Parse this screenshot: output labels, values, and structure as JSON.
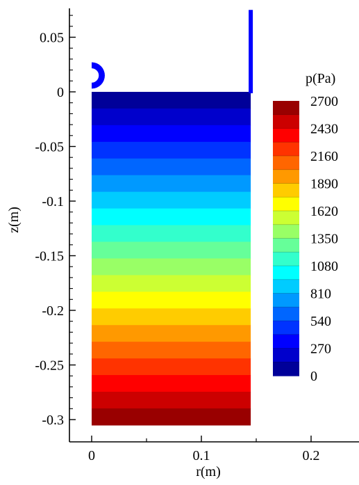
{
  "chart_data": {
    "type": "heatmap",
    "title": "",
    "xlabel": "r(m)",
    "ylabel": "z(m)",
    "xlim": [
      -0.025,
      0.25
    ],
    "ylim": [
      -0.31,
      0.075
    ],
    "x_ticks": [
      "0",
      "0.1",
      "0.2"
    ],
    "x_tick_values": [
      0,
      0.1,
      0.2
    ],
    "y_ticks": [
      "0.05",
      "0",
      "-0.05",
      "-0.1",
      "-0.15",
      "-0.2",
      "-0.25",
      "-0.3"
    ],
    "y_tick_values": [
      0.05,
      0,
      -0.05,
      -0.1,
      -0.15,
      -0.2,
      -0.25,
      -0.3
    ],
    "field": {
      "name": "p",
      "unit": "Pa",
      "min": 0,
      "max": 2700,
      "description_of_distribution": "hydrostatic: p increases linearly with depth, 0 at free surface z=0 to about 2700 at z=-0.305"
    },
    "domain": {
      "r_min": 0,
      "r_max": 0.145,
      "z_top": 0,
      "z_bottom": -0.305
    },
    "wall": {
      "r": 0.145,
      "z_top": 0.075
    },
    "semicircle": {
      "center_r": 0,
      "center_z": 0.015,
      "outer_radius": 0.012,
      "inner_radius": 0.0065
    },
    "colorbar": {
      "title": "p(Pa)",
      "levels": 21,
      "tick_labels": [
        "2700",
        "2430",
        "2160",
        "1890",
        "1620",
        "1350",
        "1080",
        "810",
        "540",
        "270",
        "0"
      ],
      "tick_values": [
        2700,
        2430,
        2160,
        1890,
        1620,
        1350,
        1080,
        810,
        540,
        270,
        0
      ],
      "placement": "right"
    },
    "colors": {
      "blue": "#0000ff",
      "cyan": "#00ffff",
      "green": "#00ff00",
      "yellow": "#ffff00",
      "red": "#ff0000"
    }
  }
}
